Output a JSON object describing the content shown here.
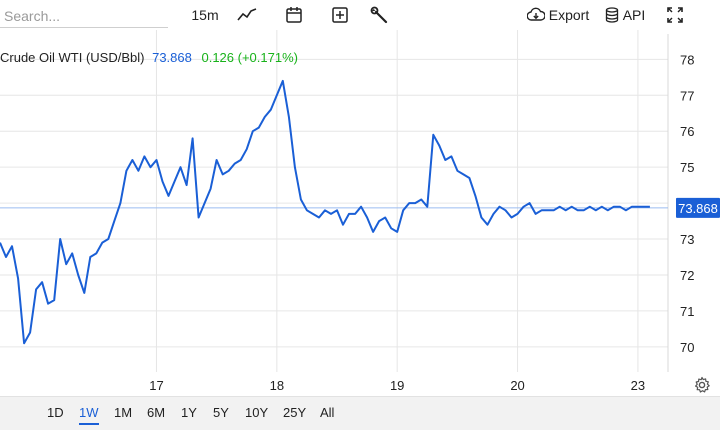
{
  "toolbar": {
    "search_placeholder": "Search...",
    "interval": "15m",
    "chart_type_icon": "line-chart-icon",
    "calendar_icon": "calendar-icon",
    "add_icon": "plus-square-icon",
    "indicators_icon": "wrench-icon",
    "export_label": "Export",
    "api_label": "API",
    "fullscreen_icon": "fullscreen-icon"
  },
  "instrument": {
    "name": "Crude Oil WTI (USD/Bbl)",
    "last": "73.868",
    "change": "0.126 (+0.171%)"
  },
  "colors": {
    "line": "#1a5fd6",
    "positive": "#18b21a",
    "grid": "#e6e6e6"
  },
  "chart_data": {
    "type": "line",
    "x_ticks": [
      "17",
      "18",
      "19",
      "20",
      "23"
    ],
    "y_ticks": [
      "70",
      "71",
      "72",
      "73",
      "74",
      "75",
      "76",
      "77",
      "78"
    ],
    "ylim": [
      69.3,
      78.4
    ],
    "current_value": 73.868,
    "current_label": "73.868",
    "grid": true,
    "series": [
      {
        "x": [
          0.0,
          0.05,
          0.1,
          0.15,
          0.2,
          0.25,
          0.3,
          0.35,
          0.4,
          0.45,
          0.5,
          0.55,
          0.6,
          0.65,
          0.7,
          0.75,
          0.8,
          0.85,
          0.9,
          0.95,
          1.0,
          1.05,
          1.1,
          1.15,
          1.2,
          1.25,
          1.3,
          1.35,
          1.4,
          1.45,
          1.5,
          1.55,
          1.6,
          1.65,
          1.7,
          1.75,
          1.8,
          1.85,
          1.9,
          1.95,
          2.0,
          2.05,
          2.1,
          2.15,
          2.2,
          2.25,
          2.3,
          2.35,
          2.4,
          2.45,
          2.5,
          2.55,
          2.6,
          2.65,
          2.7,
          2.75,
          2.8,
          2.85,
          2.9,
          2.95,
          3.0,
          3.05,
          3.1,
          3.15,
          3.2,
          3.25,
          3.3,
          3.35,
          3.4,
          3.45,
          3.5,
          3.55,
          3.6,
          3.65,
          3.7,
          3.75,
          3.8,
          3.85,
          3.9,
          3.95,
          4.0,
          4.05,
          4.1,
          4.15,
          4.2,
          4.25,
          4.3,
          4.35,
          4.4,
          4.45,
          4.5,
          4.55,
          4.6,
          4.65,
          4.7,
          4.75,
          4.8,
          4.85,
          4.9,
          4.95,
          5.0,
          5.05,
          5.1,
          5.15,
          5.2,
          5.25,
          5.3,
          5.35,
          5.4
        ],
        "values": [
          72.9,
          72.5,
          72.8,
          71.9,
          70.1,
          70.4,
          71.6,
          71.8,
          71.2,
          71.3,
          73.0,
          72.3,
          72.6,
          72.0,
          71.5,
          72.5,
          72.6,
          72.9,
          73.0,
          73.5,
          74.0,
          74.9,
          75.2,
          74.9,
          75.3,
          75.0,
          75.2,
          74.6,
          74.2,
          74.6,
          75.0,
          74.5,
          75.8,
          73.6,
          74.0,
          74.4,
          75.2,
          74.8,
          74.9,
          75.1,
          75.2,
          75.5,
          76.0,
          76.1,
          76.4,
          76.6,
          77.0,
          77.4,
          76.4,
          75.0,
          74.1,
          73.8,
          73.7,
          73.6,
          73.8,
          73.7,
          73.8,
          73.4,
          73.7,
          73.7,
          73.9,
          73.6,
          73.2,
          73.5,
          73.6,
          73.3,
          73.2,
          73.8,
          74.0,
          74.0,
          74.1,
          73.9,
          75.9,
          75.6,
          75.2,
          75.3,
          74.9,
          74.8,
          74.7,
          74.2,
          73.6,
          73.4,
          73.7,
          73.9,
          73.8,
          73.6,
          73.7,
          73.9,
          74.0,
          73.7,
          73.8,
          73.8,
          73.8,
          73.9,
          73.8,
          73.9,
          73.8,
          73.8,
          73.9,
          73.8,
          73.9,
          73.8,
          73.9,
          73.9,
          73.8,
          73.9,
          73.9,
          73.9,
          73.9
        ]
      }
    ]
  },
  "ranges": [
    {
      "label": "1D",
      "active": false
    },
    {
      "label": "1W",
      "active": true
    },
    {
      "label": "1M",
      "active": false
    },
    {
      "label": "6M",
      "active": false
    },
    {
      "label": "1Y",
      "active": false
    },
    {
      "label": "5Y",
      "active": false
    },
    {
      "label": "10Y",
      "active": false
    },
    {
      "label": "25Y",
      "active": false
    },
    {
      "label": "All",
      "active": false
    }
  ],
  "settings_icon": "gear-icon"
}
